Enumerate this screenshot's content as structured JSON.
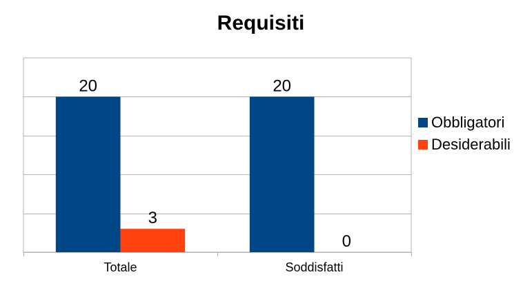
{
  "chart_data": {
    "type": "bar",
    "title": "Requisiti",
    "categories": [
      "Totale",
      "Soddisfatti"
    ],
    "series": [
      {
        "name": "Obbligatori",
        "values": [
          20,
          20
        ],
        "color": "#004586"
      },
      {
        "name": "Desiderabili",
        "values": [
          3,
          0
        ],
        "color": "#ff420e"
      }
    ],
    "ylim": [
      0,
      25
    ],
    "y_grid_step": 5,
    "grid": true,
    "xlabel": "",
    "ylabel": "",
    "legend_position": "right",
    "data_labels": true
  }
}
